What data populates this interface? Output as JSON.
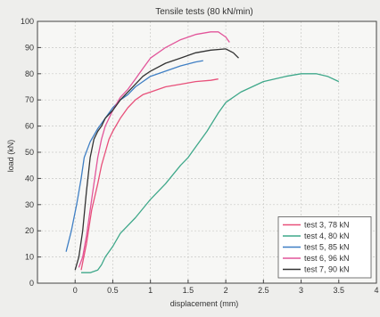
{
  "chart_data": {
    "type": "line",
    "title": "Tensile tests (80 kN/min)",
    "xlabel": "displacement (mm)",
    "ylabel": "load (kN)",
    "xlim": [
      -0.5,
      4
    ],
    "ylim": [
      0,
      100
    ],
    "x_ticks": [
      0,
      0.5,
      1,
      1.5,
      2,
      2.5,
      3,
      3.5,
      4
    ],
    "x_tick_labels": [
      "0",
      "0.5",
      "1",
      "1.5",
      "2",
      "2.5",
      "3",
      "3.5",
      "4"
    ],
    "y_ticks": [
      0,
      10,
      20,
      30,
      40,
      50,
      60,
      70,
      80,
      90,
      100
    ],
    "y_tick_labels": [
      "0",
      "10",
      "20",
      "30",
      "40",
      "50",
      "60",
      "70",
      "80",
      "90",
      "100"
    ],
    "grid": true,
    "legend_position": "bottom-right",
    "series": [
      {
        "name": "test 3, 78 kN",
        "color": "#e8507a",
        "x": [
          0.08,
          0.15,
          0.22,
          0.3,
          0.35,
          0.4,
          0.45,
          0.5,
          0.6,
          0.7,
          0.8,
          0.9,
          1.0,
          1.2,
          1.4,
          1.6,
          1.8,
          1.9
        ],
        "y": [
          5,
          15,
          28,
          38,
          45,
          50,
          55,
          58,
          63,
          67,
          70,
          72,
          73,
          75,
          76,
          77,
          77.5,
          78
        ]
      },
      {
        "name": "test 4, 80 kN",
        "color": "#3fa88a",
        "x": [
          0.08,
          0.2,
          0.3,
          0.35,
          0.4,
          0.5,
          0.6,
          0.8,
          1.0,
          1.2,
          1.4,
          1.5,
          1.6,
          1.75,
          1.9,
          2.0,
          2.2,
          2.5,
          2.8,
          3.0,
          3.2,
          3.35,
          3.5
        ],
        "y": [
          4,
          4,
          5,
          7,
          10,
          14,
          19,
          25,
          32,
          38,
          45,
          48,
          52,
          58,
          65,
          69,
          73,
          77,
          79,
          80,
          80,
          79,
          77
        ]
      },
      {
        "name": "test 5, 85 kN",
        "color": "#3f7fc4",
        "x": [
          -0.12,
          -0.05,
          0.02,
          0.08,
          0.12,
          0.2,
          0.3,
          0.4,
          0.5,
          0.6,
          0.7,
          0.8,
          0.9,
          1.0,
          1.2,
          1.4,
          1.6,
          1.7
        ],
        "y": [
          12,
          20,
          30,
          40,
          48,
          54,
          59,
          63,
          67,
          70,
          72,
          75,
          77,
          79,
          81,
          83,
          84.5,
          85
        ]
      },
      {
        "name": "test 6, 96 kN",
        "color": "#e2559a",
        "x": [
          0.05,
          0.1,
          0.15,
          0.2,
          0.25,
          0.3,
          0.35,
          0.4,
          0.45,
          0.5,
          0.6,
          0.7,
          0.8,
          0.9,
          1.0,
          1.2,
          1.4,
          1.6,
          1.8,
          1.9,
          2.0,
          2.05
        ],
        "y": [
          6,
          10,
          18,
          28,
          38,
          48,
          55,
          60,
          63,
          66,
          71,
          74,
          78,
          82,
          86,
          90,
          93,
          95,
          96,
          96,
          94,
          92
        ]
      },
      {
        "name": "test 7, 90 kN",
        "color": "#333333",
        "x": [
          0.0,
          0.05,
          0.1,
          0.15,
          0.2,
          0.25,
          0.3,
          0.35,
          0.4,
          0.5,
          0.6,
          0.7,
          0.8,
          0.9,
          1.0,
          1.2,
          1.4,
          1.6,
          1.8,
          2.0,
          2.1,
          2.17
        ],
        "y": [
          5,
          10,
          20,
          35,
          48,
          55,
          58,
          60,
          63,
          66,
          70,
          73,
          76,
          79,
          81,
          84,
          86,
          88,
          89,
          89.5,
          88,
          86
        ]
      }
    ]
  }
}
